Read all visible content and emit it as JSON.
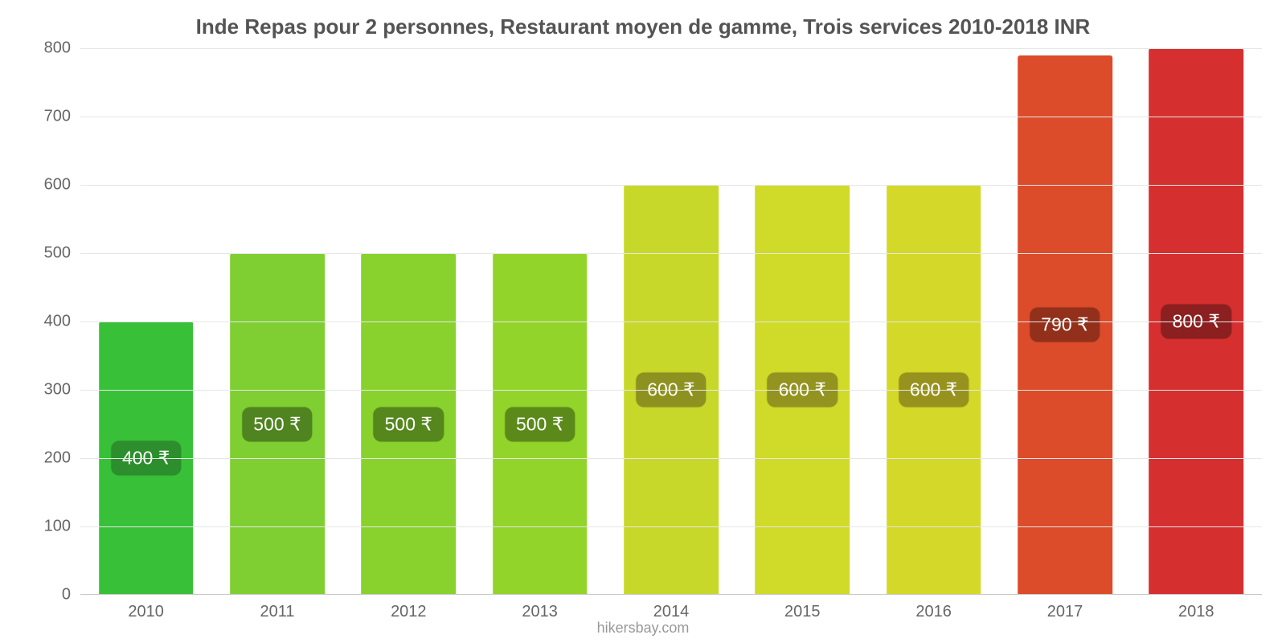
{
  "chart": {
    "type": "bar",
    "title": "Inde Repas pour 2 personnes, Restaurant moyen de gamme, Trois services 2010-2018 INR",
    "title_fontsize": 26,
    "title_color": "#545454",
    "background_color": "#ffffff",
    "source_text": "hikersbay.com",
    "source_color": "#999999",
    "source_fontsize": 18,
    "y_axis": {
      "min": 0,
      "max": 800,
      "ticks": [
        0,
        100,
        200,
        300,
        400,
        500,
        600,
        700,
        800
      ],
      "label_fontsize": 20,
      "label_color": "#666666",
      "grid_color": "#e6e6e6",
      "baseline_color": "#c7c7c7"
    },
    "x_axis": {
      "label_fontsize": 20,
      "label_color": "#666666"
    },
    "bar_width_ratio": 0.72,
    "bars": [
      {
        "category": "2010",
        "value": 400,
        "value_label": "400 ₹",
        "bar_color": "#38c138",
        "label_bg": "#2c8e2c"
      },
      {
        "category": "2011",
        "value": 500,
        "value_label": "500 ₹",
        "bar_color": "#7fcf33",
        "label_bg": "#4f8420"
      },
      {
        "category": "2012",
        "value": 500,
        "value_label": "500 ₹",
        "bar_color": "#89d22e",
        "label_bg": "#55871d"
      },
      {
        "category": "2013",
        "value": 500,
        "value_label": "500 ₹",
        "bar_color": "#92d429",
        "label_bg": "#5b8a1b"
      },
      {
        "category": "2014",
        "value": 600,
        "value_label": "600 ₹",
        "bar_color": "#c8d82a",
        "label_bg": "#8d911f"
      },
      {
        "category": "2015",
        "value": 600,
        "value_label": "600 ₹",
        "bar_color": "#d0da29",
        "label_bg": "#93931f"
      },
      {
        "category": "2016",
        "value": 600,
        "value_label": "600 ₹",
        "bar_color": "#d4d828",
        "label_bg": "#97921e"
      },
      {
        "category": "2017",
        "value": 790,
        "value_label": "790 ₹",
        "bar_color": "#dc4b2a",
        "label_bg": "#92301b"
      },
      {
        "category": "2018",
        "value": 800,
        "value_label": "800 ₹",
        "bar_color": "#d62f2f",
        "label_bg": "#8c1f1f"
      }
    ]
  }
}
